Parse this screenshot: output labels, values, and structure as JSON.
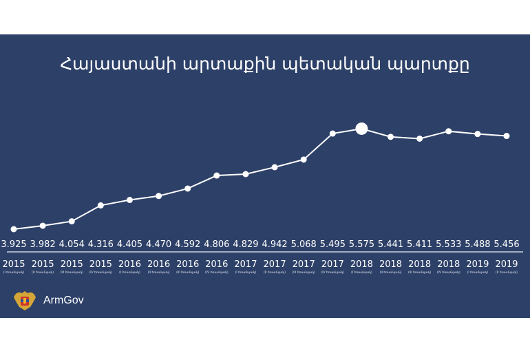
{
  "chart_data": {
    "type": "line",
    "title": "Հայաստանի արտաքին պետական պարտքը",
    "categories": [
      {
        "year": "2015",
        "quarter": "(I եռամսյակ)"
      },
      {
        "year": "2015",
        "quarter": "(II եռամսյակ)"
      },
      {
        "year": "2015",
        "quarter": "(III եռամսյակ)"
      },
      {
        "year": "2015",
        "quarter": "(IV եռամսյակ)"
      },
      {
        "year": "2016",
        "quarter": "(I եռամսյակ)"
      },
      {
        "year": "2016",
        "quarter": "(II եռամսյակ)"
      },
      {
        "year": "2016",
        "quarter": "(III եռամսյակ)"
      },
      {
        "year": "2016",
        "quarter": "(IV եռամսյակ)"
      },
      {
        "year": "2017",
        "quarter": "(I եռամսյակ)"
      },
      {
        "year": "2017",
        "quarter": "(II եռամսյակ)"
      },
      {
        "year": "2017",
        "quarter": "(III եռամսյակ)"
      },
      {
        "year": "2017",
        "quarter": "(IV եռամսյակ)"
      },
      {
        "year": "2018",
        "quarter": "(I եռամսյակ)"
      },
      {
        "year": "2018",
        "quarter": "(II եռամսյակ)"
      },
      {
        "year": "2018",
        "quarter": "(III եռամսյակ)"
      },
      {
        "year": "2018",
        "quarter": "(IV եռամսյակ)"
      },
      {
        "year": "2019",
        "quarter": "(I եռամսյակ)"
      },
      {
        "year": "2019",
        "quarter": "(II եռամսյակ)"
      }
    ],
    "value_labels": [
      "3.925",
      "3.982",
      "4.054",
      "4.316",
      "4.405",
      "4.470",
      "4.592",
      "4.806",
      "4.829",
      "4.942",
      "5.068",
      "5.495",
      "5.575",
      "5.441",
      "5.411",
      "5.533",
      "5.488",
      "5.456"
    ],
    "values": [
      3.925,
      3.982,
      4.054,
      4.316,
      4.405,
      4.47,
      4.592,
      4.806,
      4.829,
      4.942,
      5.068,
      5.495,
      5.575,
      5.441,
      5.411,
      5.533,
      5.488,
      5.456
    ],
    "highlight_index": 12,
    "grid": false,
    "colors": {
      "background": "#2d4068",
      "line": "#ffffff",
      "marker": "#ffffff"
    }
  },
  "footer": {
    "brand": "ArmGov",
    "logo": "armenia-coat-of-arms"
  }
}
